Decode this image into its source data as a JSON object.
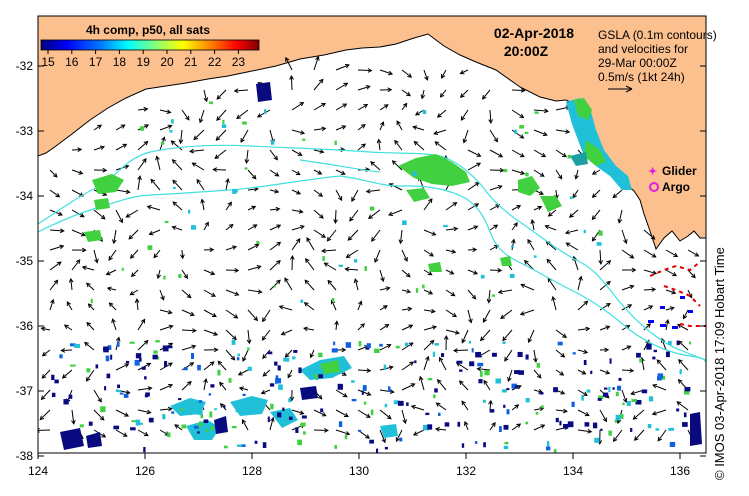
{
  "colorbar": {
    "title": "4h comp, p50, all sats",
    "ticks": [
      "15",
      "16",
      "17",
      "18",
      "19",
      "20",
      "21",
      "22",
      "23"
    ],
    "colors": [
      "#00007f",
      "#0000ff",
      "#007fff",
      "#00ffff",
      "#7fff7f",
      "#ffff00",
      "#ff7f00",
      "#ff0000",
      "#7f0000"
    ]
  },
  "timestamp": {
    "date": "02-Apr-2018",
    "time": "20:00Z"
  },
  "gsla_note": {
    "line1": "GSLA (0.1m contours)",
    "line2": "and velocities for",
    "line3": "29-Mar 00:00Z",
    "line4": "0.5m/s (1kt 24h)"
  },
  "legend": {
    "glider": "Glider",
    "argo": "Argo"
  },
  "axes": {
    "lat_ticks": [
      "-32",
      "-33",
      "-34",
      "-35",
      "-36",
      "-37",
      "-38"
    ],
    "lon_ticks": [
      "124",
      "126",
      "128",
      "130",
      "132",
      "134",
      "136"
    ]
  },
  "credit": "© IMOS 03-Apr-2018 17:09 Hobart Time",
  "colors": {
    "land": "#fcc08f",
    "contour": "#40e0e0",
    "sst_green": "#40d040",
    "sst_cyan": "#20c0d8",
    "sst_navy": "#0a0a80",
    "front_red": "#e00000",
    "argo": "#e020e0"
  }
}
